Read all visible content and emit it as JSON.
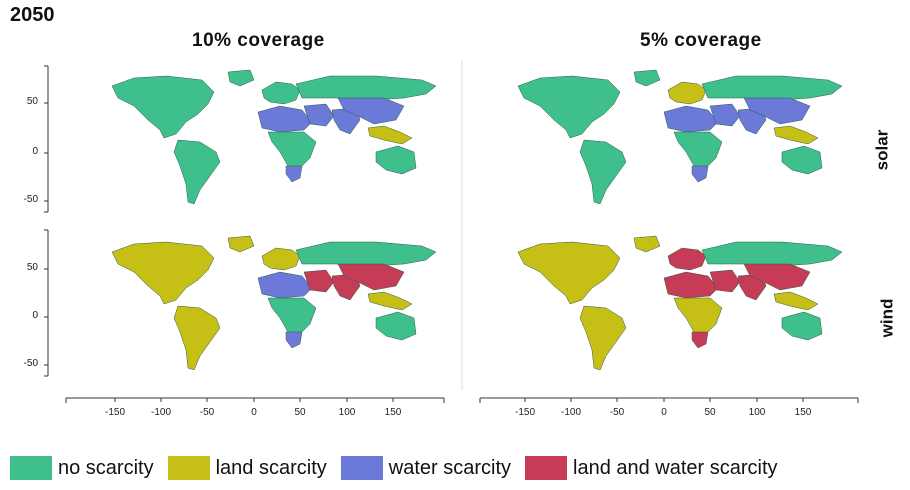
{
  "figure": {
    "year": "2050",
    "columns": [
      "10% coverage",
      "5% coverage"
    ],
    "rows": [
      "solar",
      "wind"
    ],
    "y_ticks": [
      "50",
      "0",
      "-50"
    ],
    "x_ticks": [
      "-150",
      "-100",
      "-50",
      "0",
      "50",
      "100",
      "150"
    ]
  },
  "colors": {
    "no_scarcity": "#3fbf8c",
    "land_scarcity": "#c6bf16",
    "water_scarcity": "#6b79d8",
    "land_and_water_scarcity": "#c63b55"
  },
  "legend": [
    {
      "label": "no scarcity",
      "color": "#3fbf8c"
    },
    {
      "label": "land scarcity",
      "color": "#c6bf16"
    },
    {
      "label": "water scarcity",
      "color": "#6b79d8"
    },
    {
      "label": "land and water scarcity",
      "color": "#c63b55"
    }
  ],
  "panels": [
    {
      "column": "10% coverage",
      "row": "solar",
      "regions": {
        "north_america": "no_scarcity",
        "south_america": "no_scarcity",
        "europe": "no_scarcity",
        "north_africa": "water_scarcity",
        "middle_east": "water_scarcity",
        "south_asia": "water_scarcity",
        "china": "water_scarcity",
        "russia": "no_scarcity",
        "sub_saharan_africa": "no_scarcity",
        "southern_africa": "water_scarcity",
        "southeast_asia": "land_scarcity",
        "australia": "no_scarcity"
      }
    },
    {
      "column": "5% coverage",
      "row": "solar",
      "regions": {
        "north_america": "no_scarcity",
        "south_america": "no_scarcity",
        "europe": "land_scarcity",
        "north_africa": "water_scarcity",
        "middle_east": "water_scarcity",
        "south_asia": "water_scarcity",
        "china": "water_scarcity",
        "russia": "no_scarcity",
        "sub_saharan_africa": "no_scarcity",
        "southern_africa": "water_scarcity",
        "southeast_asia": "land_scarcity",
        "australia": "no_scarcity"
      }
    },
    {
      "column": "10% coverage",
      "row": "wind",
      "regions": {
        "north_america": "land_scarcity",
        "south_america": "land_scarcity",
        "europe": "land_scarcity",
        "north_africa": "water_scarcity",
        "middle_east": "land_and_water_scarcity",
        "south_asia": "land_and_water_scarcity",
        "china": "land_and_water_scarcity",
        "russia": "no_scarcity",
        "sub_saharan_africa": "no_scarcity",
        "southern_africa": "water_scarcity",
        "southeast_asia": "land_scarcity",
        "australia": "no_scarcity"
      }
    },
    {
      "column": "5% coverage",
      "row": "wind",
      "regions": {
        "north_america": "land_scarcity",
        "south_america": "land_scarcity",
        "europe": "land_and_water_scarcity",
        "north_africa": "land_and_water_scarcity",
        "middle_east": "land_and_water_scarcity",
        "south_asia": "land_and_water_scarcity",
        "china": "land_and_water_scarcity",
        "russia": "no_scarcity",
        "sub_saharan_africa": "land_scarcity",
        "southern_africa": "land_and_water_scarcity",
        "southeast_asia": "land_scarcity",
        "australia": "no_scarcity"
      }
    }
  ]
}
